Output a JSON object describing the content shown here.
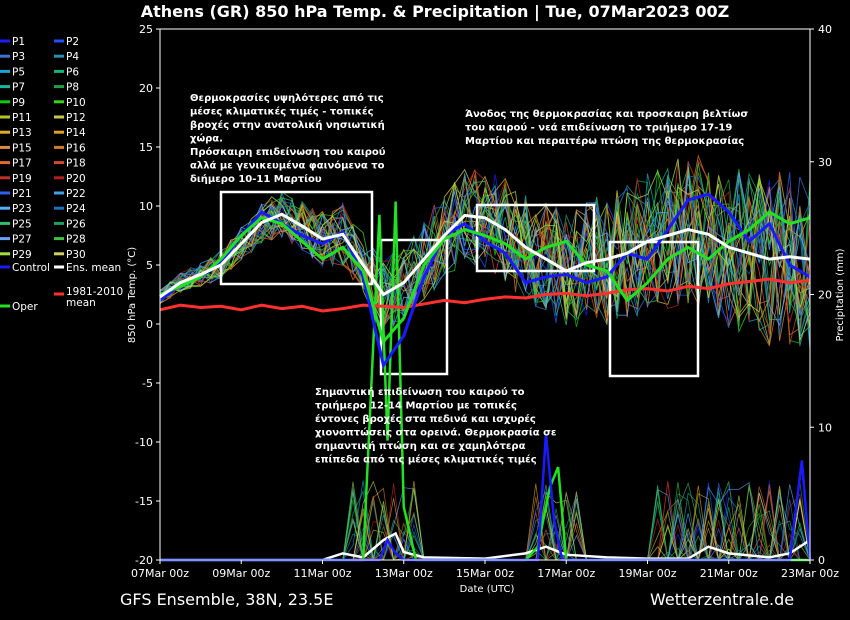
{
  "title": "Athens  (GR)  850 hPa Temp. & Precipitation | Tue, 07Mar2023 00Z",
  "footer_left": "GFS Ensemble, 38N, 23.5E",
  "footer_right": "Wetterzentrale.de",
  "annotations": [
    {
      "lines": [
        "Θερμοκρασίες υψηλότερες από τις",
        "μέσες κλιματικές τιμές - τοπικές",
        "βροχές στην ανατολική νησιωτική",
        "χώρα.",
        "Πρόσκαιρη επιδείνωση του καιρού",
        "αλλά με γενικευμένα φαινόμενα το",
        "διήμερο 10-11 Μαρτίου"
      ]
    },
    {
      "lines": [
        "Άνοδος της θερμοκρασίας και προσκαιρη βελτίωσ",
        "του καιρού - νεά επιδείνωση το τριήμερο 17-19",
        "Μαρτίου και περαιτέρω πτώση της θερμοκρασίας"
      ]
    },
    {
      "lines": [
        "Σημαντική επιδείνωση του καιρού το",
        "τριήμερο 12-14 Μαρτίου με τοπικές",
        "έντονες βροχές στα πεδινά και ισχυρές",
        "χιονοπτώσεις στα ορεινά. Θερμοκρασία σε",
        "σημαντική πτώση και σε χαμηλότερα",
        "επίπεδα από τις μέσες κλιματικές τιμές"
      ]
    }
  ],
  "chart_data": {
    "type": "line",
    "x_ticks": [
      "07Mar 00z",
      "09Mar 00z",
      "11Mar 00z",
      "13Mar 00z",
      "15Mar 00z",
      "17Mar 00z",
      "19Mar 00z",
      "21Mar 00z",
      "23Mar 00z"
    ],
    "xlabel": "Date (UTC)",
    "ylabel_left": "850 hPa Temp. (°C)",
    "ylabel_right": "Precipitation (mm)",
    "ylim_left": [
      -20,
      25
    ],
    "ylim_right": [
      0,
      40
    ],
    "yticks_left": [
      -20,
      -15,
      -10,
      -5,
      0,
      5,
      10,
      15,
      20,
      25
    ],
    "yticks_right": [
      0,
      10,
      20,
      30,
      40
    ],
    "x_days": [
      0,
      2,
      4,
      6,
      8,
      10,
      12,
      14,
      16
    ],
    "legend": [
      {
        "label": "P1",
        "color": "#1c1cff"
      },
      {
        "label": "P2",
        "color": "#2050ff"
      },
      {
        "label": "P3",
        "color": "#3f6fd0"
      },
      {
        "label": "P4",
        "color": "#2a8fb0"
      },
      {
        "label": "P5",
        "color": "#1aa3d0"
      },
      {
        "label": "P6",
        "color": "#17b27a"
      },
      {
        "label": "P7",
        "color": "#12b9a0"
      },
      {
        "label": "P8",
        "color": "#20a040"
      },
      {
        "label": "P9",
        "color": "#11c811"
      },
      {
        "label": "P10",
        "color": "#39d11a"
      },
      {
        "label": "P11",
        "color": "#b8c41e"
      },
      {
        "label": "P12",
        "color": "#c8c850"
      },
      {
        "label": "P13",
        "color": "#d8b020"
      },
      {
        "label": "P14",
        "color": "#e0a020"
      },
      {
        "label": "P15",
        "color": "#e08a40"
      },
      {
        "label": "P16",
        "color": "#d07a2a"
      },
      {
        "label": "P17",
        "color": "#e06a30"
      },
      {
        "label": "P18",
        "color": "#d04a30"
      },
      {
        "label": "P19",
        "color": "#c0302a"
      },
      {
        "label": "P20",
        "color": "#b02020"
      },
      {
        "label": "P21",
        "color": "#3060f0"
      },
      {
        "label": "P22",
        "color": "#40a0e0"
      },
      {
        "label": "P23",
        "color": "#50b0ff"
      },
      {
        "label": "P24",
        "color": "#2070c0"
      },
      {
        "label": "P25",
        "color": "#30c070"
      },
      {
        "label": "P26",
        "color": "#1fa060"
      },
      {
        "label": "P27",
        "color": "#6aa0ff"
      },
      {
        "label": "P28",
        "color": "#40c040"
      },
      {
        "label": "P29",
        "color": "#a0e040"
      },
      {
        "label": "P30",
        "color": "#d0d060"
      },
      {
        "label": "Control",
        "color": "#1a1aff"
      },
      {
        "label": "Ens. mean",
        "color": "#ffffff"
      },
      {
        "label": "Oper",
        "color": "#22e022"
      },
      {
        "label": "1981-2010 mean",
        "color": "#ff3030"
      }
    ],
    "series": [
      {
        "name": "Ens. mean",
        "x": [
          0,
          0.5,
          1,
          1.5,
          2,
          2.5,
          3,
          3.5,
          4,
          4.5,
          5,
          5.5,
          6,
          6.5,
          7,
          7.5,
          8,
          8.5,
          9,
          9.5,
          10,
          10.5,
          11,
          11.5,
          12,
          12.5,
          13,
          13.5,
          14,
          14.5,
          15,
          15.5,
          16
        ],
        "y": [
          2.3,
          3.5,
          4.2,
          5.0,
          6.8,
          8.6,
          9.3,
          8.3,
          7.2,
          7.6,
          5.0,
          2.5,
          3.5,
          5.5,
          7.5,
          9.2,
          9.0,
          8.0,
          6.5,
          5.5,
          4.5,
          5.2,
          5.5,
          6.0,
          7.0,
          7.5,
          8.0,
          7.6,
          6.5,
          6.0,
          5.5,
          5.7,
          5.5
        ]
      },
      {
        "name": "Control",
        "x": [
          0,
          0.5,
          1,
          1.5,
          2,
          2.5,
          3,
          3.5,
          4,
          4.5,
          5,
          5.5,
          6,
          6.5,
          7,
          7.5,
          8,
          8.5,
          9,
          9.5,
          10,
          10.5,
          11,
          11.5,
          12,
          12.5,
          13,
          13.5,
          14,
          14.5,
          15,
          15.5,
          16
        ],
        "y": [
          2.0,
          3.3,
          4.0,
          5.2,
          7.5,
          9.5,
          8.5,
          7.5,
          6.8,
          7.8,
          4.0,
          -3.5,
          -1.0,
          4.0,
          7.5,
          8.5,
          7.0,
          6.0,
          3.5,
          4.0,
          4.2,
          3.5,
          4.0,
          6.0,
          5.5,
          8.0,
          10.5,
          11.0,
          9.5,
          7.0,
          8.5,
          5.0,
          4.0
        ]
      },
      {
        "name": "Oper",
        "x": [
          0,
          0.5,
          1,
          1.5,
          2,
          2.5,
          3,
          3.5,
          4,
          4.5,
          5,
          5.5,
          6,
          6.5,
          7,
          7.5,
          8,
          8.5,
          9,
          9.5,
          10,
          10.5,
          11,
          11.5,
          12,
          12.5,
          13,
          13.5,
          14,
          14.5,
          15,
          15.5,
          16
        ],
        "y": [
          2.5,
          3.2,
          4.0,
          5.5,
          7.5,
          9.0,
          8.5,
          7.0,
          5.5,
          6.5,
          4.5,
          -1.5,
          0.5,
          5.0,
          7.2,
          8.0,
          7.5,
          6.8,
          5.5,
          6.5,
          7.0,
          5.0,
          4.5,
          2.0,
          3.5,
          5.5,
          6.5,
          5.5,
          7.0,
          8.0,
          9.5,
          8.5,
          9.0
        ]
      },
      {
        "name": "1981-2010 mean",
        "x": [
          0,
          0.5,
          1,
          1.5,
          2,
          2.5,
          3,
          3.5,
          4,
          4.5,
          5,
          5.5,
          6,
          6.5,
          7,
          7.5,
          8,
          8.5,
          9,
          9.5,
          10,
          10.5,
          11,
          11.5,
          12,
          12.5,
          13,
          13.5,
          14,
          14.5,
          15,
          15.5,
          16
        ],
        "y": [
          1.2,
          1.6,
          1.4,
          1.5,
          1.2,
          1.6,
          1.3,
          1.5,
          1.1,
          1.3,
          1.6,
          1.5,
          1.4,
          1.7,
          2.0,
          1.8,
          2.1,
          2.3,
          2.2,
          2.5,
          2.6,
          2.4,
          2.6,
          2.9,
          3.0,
          2.8,
          3.2,
          3.0,
          3.4,
          3.6,
          3.8,
          3.5,
          3.7
        ]
      }
    ],
    "precipitation": [
      {
        "name": "Ens. mean",
        "x": [
          0,
          4,
          4.5,
          5,
          5.5,
          5.8,
          6,
          6.5,
          8,
          9,
          9.5,
          10,
          11,
          12,
          13,
          13.5,
          14,
          15,
          15.5,
          16
        ],
        "y": [
          0,
          0,
          0.5,
          0.2,
          1.5,
          2.0,
          0.6,
          0.2,
          0.1,
          0.5,
          1.0,
          0.4,
          0.2,
          0.1,
          0.1,
          1.0,
          0.5,
          0.2,
          0.5,
          1.5
        ]
      },
      {
        "name": "Oper",
        "x": [
          0,
          5,
          5.4,
          5.6,
          5.8,
          6,
          6.3,
          8,
          9,
          9.3,
          9.6,
          9.8,
          10,
          14,
          15,
          16
        ],
        "y": [
          0,
          0,
          26,
          9,
          27,
          4,
          0,
          0,
          0,
          1,
          5.5,
          7,
          0,
          0,
          0,
          0
        ]
      },
      {
        "name": "Control",
        "x": [
          0,
          5.4,
          5.6,
          5.8,
          6,
          6.3,
          9.3,
          9.5,
          9.7,
          9.9,
          15.5,
          15.8,
          16
        ],
        "y": [
          0,
          0,
          1.5,
          0.5,
          0,
          0,
          0,
          9.5,
          3,
          0,
          0,
          7.5,
          0
        ]
      }
    ],
    "grid": false
  }
}
